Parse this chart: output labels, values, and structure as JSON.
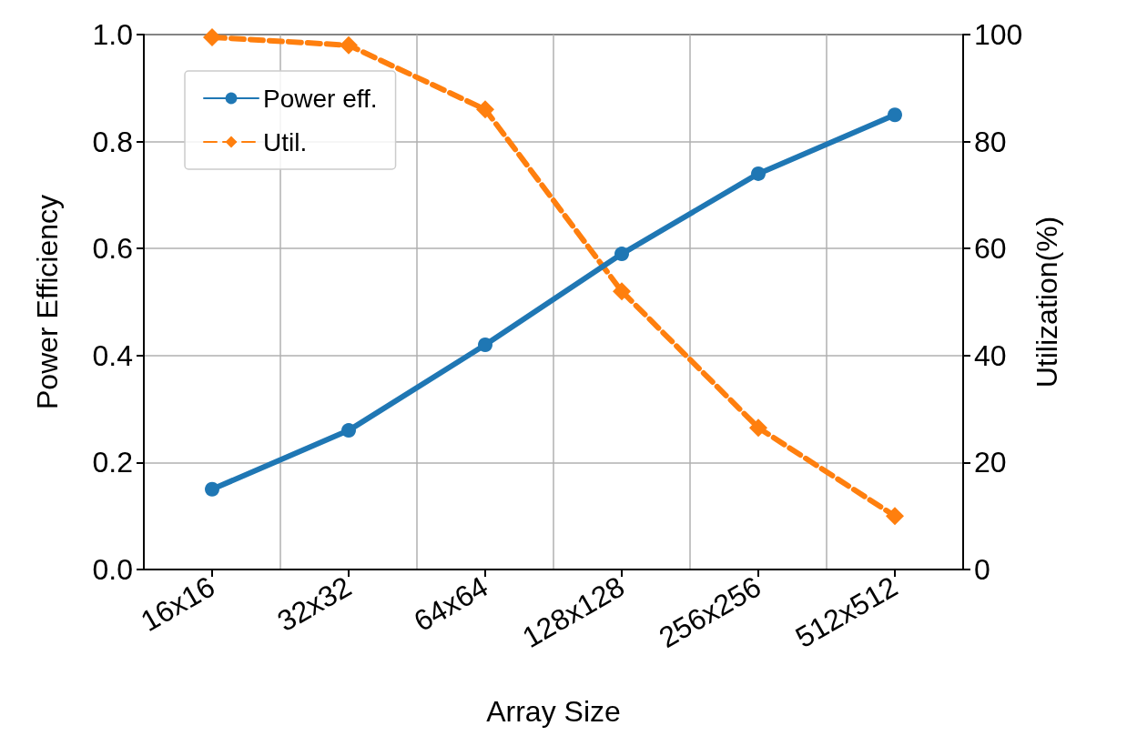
{
  "chart_data": {
    "type": "line",
    "xlabel": "Array Size",
    "ylabel": "Power Efficiency",
    "y2label": "Utilization(%)",
    "categories": [
      "16x16",
      "32x32",
      "64x64",
      "128x128",
      "256x256",
      "512x512"
    ],
    "series": [
      {
        "name": "Power eff.",
        "color": "#1f77b4",
        "values": [
          0.15,
          0.26,
          0.42,
          0.59,
          0.74,
          0.85
        ],
        "marker": "circle",
        "line_style": "solid"
      },
      {
        "name": "Util.",
        "color": "#ff7f0e",
        "values": [
          99.5,
          98,
          86,
          52,
          26.5,
          10
        ],
        "marker": "diamond",
        "line_style": "dashed",
        "axis": "y2"
      }
    ],
    "ylim": [
      0,
      1
    ],
    "yticks": [
      {
        "value": 0,
        "label": "0.0"
      },
      0.2,
      0.4,
      0.6,
      0.8,
      {
        "value": 1,
        "label": "1.0"
      }
    ],
    "y2lim": [
      0,
      100
    ],
    "y2ticks": [
      0,
      20,
      40,
      60,
      80,
      100
    ],
    "grid": true,
    "legend": "top left"
  }
}
